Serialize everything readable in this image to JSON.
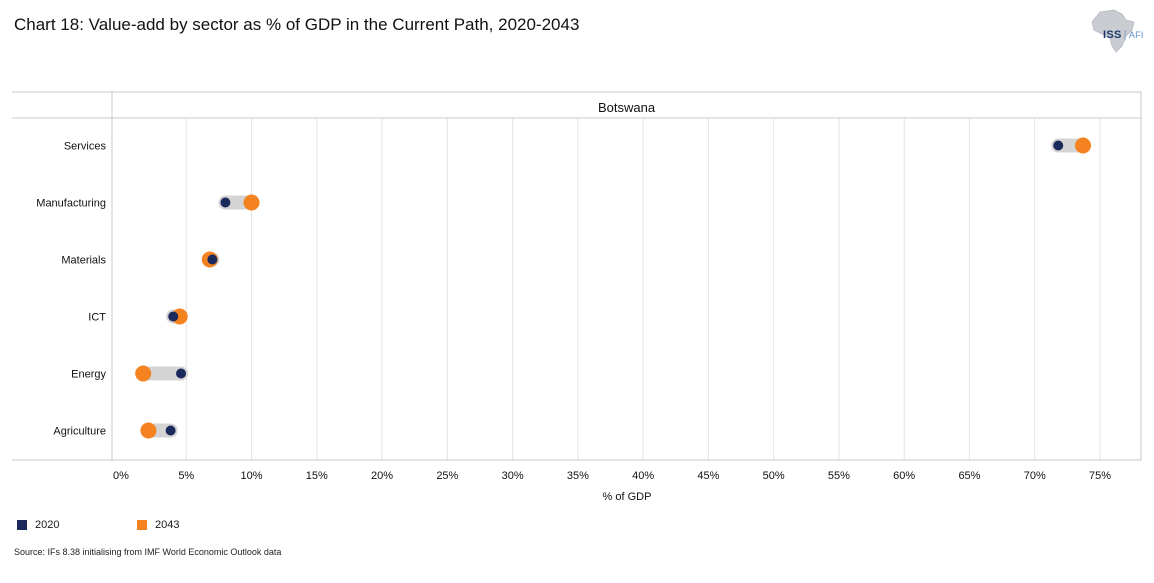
{
  "title": "Chart 18: Value-add by sector as % of GDP in the Current Path, 2020-2043",
  "logo": {
    "primary": "ISS",
    "secondary": "AFI",
    "icon": "africa-map-icon"
  },
  "source": "Source: IFs 8.38 initialising from IMF World Economic Outlook data",
  "colors": {
    "series_2020": "#1b2a5a",
    "series_2043": "#f58220",
    "connector": "#d4d4d4",
    "grid": "#e3e3e3"
  },
  "legend": [
    {
      "label": "2020",
      "color": "#1b2a5a"
    },
    {
      "label": "2043",
      "color": "#f58220"
    }
  ],
  "chart_data": {
    "type": "scatter",
    "style": "dumbbell",
    "panel_title": "Botswana",
    "xlabel": "% of GDP",
    "ylabel": "",
    "xlim": [
      0,
      77
    ],
    "xticks": [
      0,
      5,
      10,
      15,
      20,
      25,
      30,
      35,
      40,
      45,
      50,
      55,
      60,
      65,
      70,
      75
    ],
    "xtick_labels": [
      "0%",
      "5%",
      "10%",
      "15%",
      "20%",
      "25%",
      "30%",
      "35%",
      "40%",
      "45%",
      "50%",
      "55%",
      "60%",
      "65%",
      "70%",
      "75%"
    ],
    "categories": [
      "Services",
      "Manufacturing",
      "Materials",
      "ICT",
      "Energy",
      "Agriculture"
    ],
    "series": [
      {
        "name": "2020",
        "values": [
          71.8,
          8.0,
          7.0,
          4.0,
          4.6,
          3.8
        ]
      },
      {
        "name": "2043",
        "values": [
          73.7,
          10.0,
          6.8,
          4.5,
          1.7,
          2.1
        ]
      }
    ],
    "grid": true,
    "legend_position": "bottom-left"
  }
}
